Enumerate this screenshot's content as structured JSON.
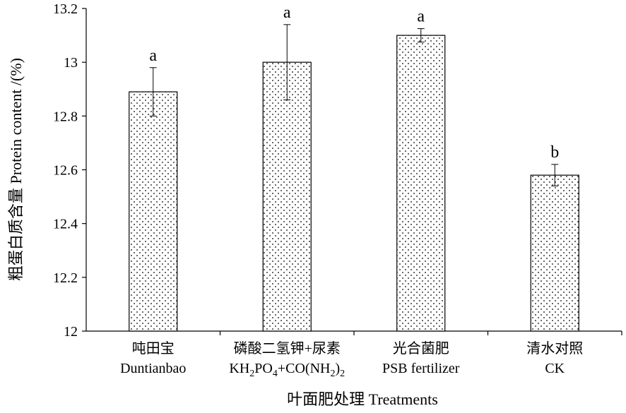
{
  "chart_data": {
    "type": "bar",
    "ylabel": "粗蛋白质含量 Protein content /(%)",
    "xlabel": "叶面肥处理 Treatments",
    "ylim": [
      12,
      13.2
    ],
    "yticks": [
      "12",
      "12.2",
      "12.4",
      "12.6",
      "12.8",
      "13",
      "13.2"
    ],
    "ytick_values": [
      12,
      12.2,
      12.4,
      12.6,
      12.8,
      13,
      13.2
    ],
    "categories": [
      {
        "cn": "吨田宝",
        "en": "Duntianbao"
      },
      {
        "cn": "磷酸二氢钾+尿素",
        "en_parts": [
          "KH",
          "2",
          "PO",
          "4",
          "+CO(NH",
          "2",
          ")",
          "2"
        ]
      },
      {
        "cn": "光合菌肥",
        "en": "PSB fertilizer"
      },
      {
        "cn": "清水对照",
        "en": "CK"
      }
    ],
    "values": [
      12.89,
      13.0,
      13.1,
      12.58
    ],
    "errors": [
      0.09,
      0.14,
      0.025,
      0.04
    ],
    "significance": [
      "a",
      "a",
      "a",
      "b"
    ],
    "grid": false,
    "bar_fill": "dotted"
  }
}
